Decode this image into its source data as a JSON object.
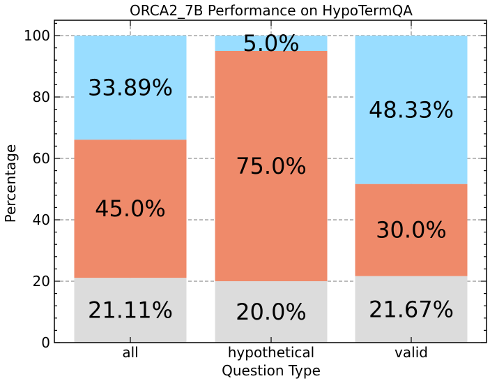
{
  "chart_data": {
    "type": "bar",
    "stacked": true,
    "title": "ORCA2_7B Performance on HypoTermQA",
    "xlabel": "Question Type",
    "ylabel": "Percentage",
    "categories": [
      "all",
      "hypothetical",
      "valid"
    ],
    "series": [
      {
        "values": [
          21.11,
          20.0,
          21.67
        ],
        "labels": [
          "21.11%",
          "20.0%",
          "21.67%"
        ],
        "color": "#dcdcdc"
      },
      {
        "values": [
          45.0,
          75.0,
          30.0
        ],
        "labels": [
          "45.0%",
          "75.0%",
          "30.0%"
        ],
        "color": "#ef8a6a"
      },
      {
        "values": [
          33.89,
          5.0,
          48.33
        ],
        "labels": [
          "33.89%",
          "5.0%",
          "48.33%"
        ],
        "color": "#99ddff"
      }
    ],
    "ylim": [
      0,
      105
    ],
    "yticks": [
      0,
      20,
      40,
      60,
      80,
      100
    ],
    "grid": true
  }
}
